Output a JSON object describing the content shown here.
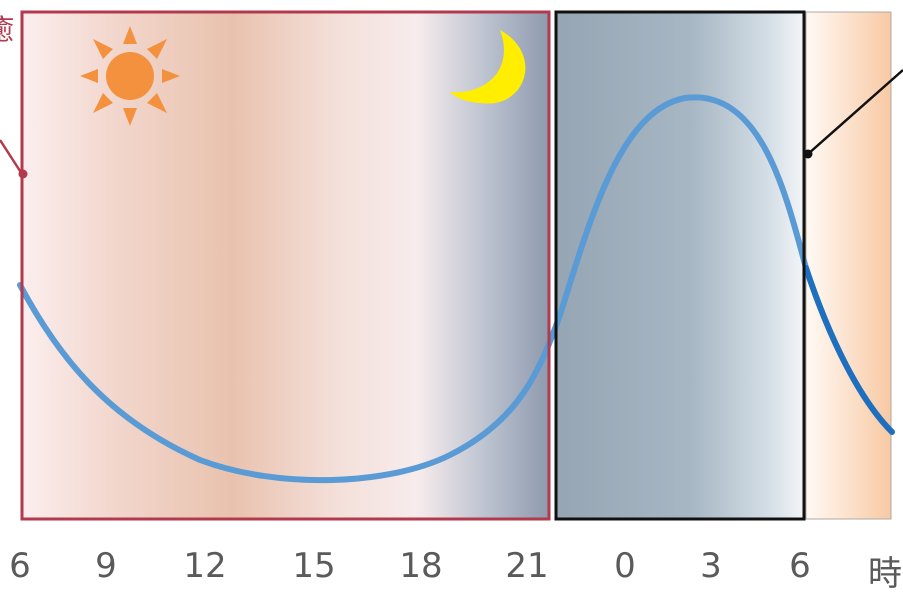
{
  "left_label_fragment": "癒",
  "x_ticks": [
    "6",
    "9",
    "12",
    "15",
    "18",
    "21",
    "0",
    "3",
    "6"
  ],
  "x_unit": "時",
  "icons": {
    "sun": "sun-icon",
    "moon": "moon-icon"
  },
  "colors": {
    "day_frame": "#b23a4c",
    "night_frame": "#111111",
    "curve": "#5b9bd5",
    "curve_dark": "#1f6fbf",
    "sun": "#f4913f",
    "moon": "#ffee00",
    "night_fill": "#9aa9b6"
  }
}
